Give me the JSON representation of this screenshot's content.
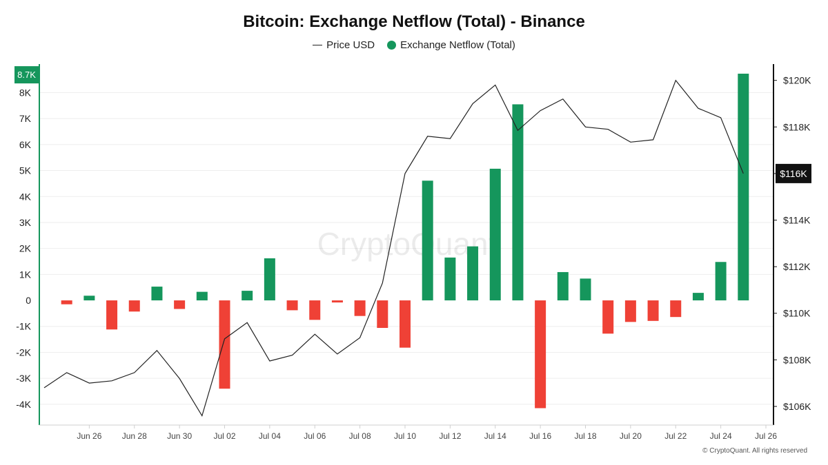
{
  "chart_data": {
    "type": "bar",
    "title": "Bitcoin: Exchange Netflow (Total) - Binance",
    "legend": {
      "placement": "top-center",
      "entries": [
        {
          "label": "Price USD",
          "marker": "line"
        },
        {
          "label": "Exchange Netflow (Total)",
          "marker": "dot"
        }
      ]
    },
    "watermark": "CryptoQuant",
    "copyright": "© CryptoQuant. All rights reserved",
    "grid": true,
    "colors": {
      "positive": "#15965c",
      "negative": "#ef4136",
      "price_line": "#222222"
    },
    "x_axis": {
      "range": [
        "Jun 24",
        "Jul 26"
      ],
      "tick_labels": [
        "Jun 26",
        "Jun 28",
        "Jun 30",
        "Jul 02",
        "Jul 04",
        "Jul 06",
        "Jul 08",
        "Jul 10",
        "Jul 12",
        "Jul 14",
        "Jul 16",
        "Jul 18",
        "Jul 20",
        "Jul 22",
        "Jul 24",
        "Jul 26"
      ]
    },
    "y_left": {
      "range": [
        -4800,
        9100
      ],
      "ticks": [
        -4000,
        -3000,
        -2000,
        -1000,
        0,
        1000,
        2000,
        3000,
        4000,
        5000,
        6000,
        7000,
        8000
      ],
      "tick_labels": [
        "-4K",
        "-3K",
        "-2K",
        "-1K",
        "0",
        "1K",
        "2K",
        "3K",
        "4K",
        "5K",
        "6K",
        "7K",
        "8K"
      ],
      "current_label": "8.7K",
      "current_value": 8700
    },
    "y_right": {
      "range": [
        105200,
        120700
      ],
      "ticks": [
        106000,
        108000,
        110000,
        112000,
        114000,
        116000,
        118000,
        120000
      ],
      "tick_labels": [
        "$106K",
        "$108K",
        "$110K",
        "$112K",
        "$114K",
        "$116K",
        "$118K",
        "$120K"
      ],
      "current_label": "$116K",
      "current_value": 116000
    },
    "dates": [
      "Jun 25",
      "Jun 26",
      "Jun 27",
      "Jun 28",
      "Jun 29",
      "Jun 30",
      "Jul 01",
      "Jul 02",
      "Jul 03",
      "Jul 04",
      "Jul 05",
      "Jul 06",
      "Jul 07",
      "Jul 08",
      "Jul 09",
      "Jul 10",
      "Jul 11",
      "Jul 12",
      "Jul 13",
      "Jul 14",
      "Jul 15",
      "Jul 16",
      "Jul 17",
      "Jul 18",
      "Jul 19",
      "Jul 20",
      "Jul 21",
      "Jul 22",
      "Jul 23",
      "Jul 24",
      "Jul 25"
    ],
    "series": [
      {
        "name": "Exchange Netflow (Total)",
        "type": "bar",
        "axis": "left",
        "values": [
          -150,
          180,
          -1120,
          -430,
          530,
          -330,
          330,
          -3400,
          370,
          1620,
          -380,
          -750,
          -80,
          -600,
          -1060,
          -1820,
          4610,
          1650,
          2080,
          5070,
          7550,
          -4150,
          1090,
          840,
          -1280,
          -830,
          -790,
          -640,
          290,
          1480,
          8730
        ]
      }
    ],
    "price_series": {
      "name": "Price USD",
      "type": "line",
      "axis": "right",
      "dates": [
        "Jun 24",
        "Jun 25",
        "Jun 26",
        "Jun 27",
        "Jun 28",
        "Jun 29",
        "Jun 30",
        "Jul 01",
        "Jul 02",
        "Jul 03",
        "Jul 04",
        "Jul 05",
        "Jul 06",
        "Jul 07",
        "Jul 08",
        "Jul 09",
        "Jul 10",
        "Jul 11",
        "Jul 12",
        "Jul 13",
        "Jul 14",
        "Jul 15",
        "Jul 16",
        "Jul 17",
        "Jul 18",
        "Jul 19",
        "Jul 20",
        "Jul 21",
        "Jul 22",
        "Jul 23",
        "Jul 24",
        "Jul 25"
      ],
      "values": [
        106800,
        107450,
        107000,
        107100,
        107450,
        108400,
        107200,
        105600,
        108900,
        109600,
        107950,
        108200,
        109100,
        108250,
        108950,
        111300,
        116000,
        117600,
        117500,
        119000,
        119800,
        117850,
        118700,
        119200,
        118000,
        117900,
        117350,
        117450,
        120000,
        118800,
        118400,
        116000
      ]
    }
  }
}
